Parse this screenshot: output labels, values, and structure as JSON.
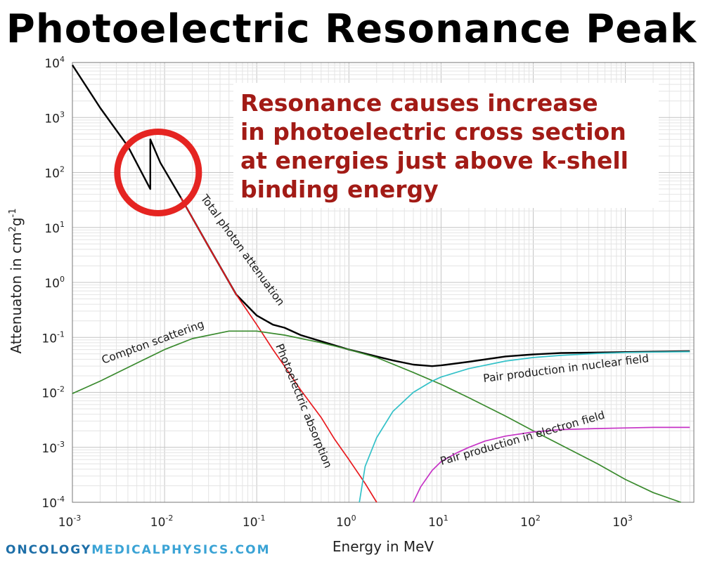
{
  "page": {
    "title": "Photoelectric Resonance Peak",
    "watermark": {
      "part1": "ONCOLOGY",
      "part2": "MEDICALPHYSICS.COM",
      "colors": {
        "part1": "#1e6fa8",
        "part2": "#3aa3d5"
      }
    }
  },
  "annotation": {
    "lines": [
      "Resonance causes increase",
      "in photoelectric cross section",
      "at energies just above k-shell",
      "binding energy"
    ],
    "color": "#a21b16",
    "highlight_circle": {
      "center_energy_MeV": 0.0085,
      "center_attenuation": 100,
      "color": "#e52421"
    }
  },
  "chart_data": {
    "type": "line",
    "xscale": "log",
    "yscale": "log",
    "xlim": [
      0.001,
      6000
    ],
    "ylim": [
      0.0001,
      10000
    ],
    "xlabel": "Energy in MeV",
    "ylabel": "Attenuaton in cm²g⁻¹",
    "ylabel_parts": {
      "pre": "Attenuaton in cm",
      "sup1": "2",
      "mid": "g",
      "sup2": "-1"
    },
    "xticks": [
      {
        "base": "10",
        "exp": "-3"
      },
      {
        "base": "10",
        "exp": "-2"
      },
      {
        "base": "10",
        "exp": "-1"
      },
      {
        "base": "10",
        "exp": "0"
      },
      {
        "base": "10",
        "exp": "1"
      },
      {
        "base": "10",
        "exp": "2"
      },
      {
        "base": "10",
        "exp": "3"
      }
    ],
    "yticks": [
      {
        "base": "10",
        "exp": "4"
      },
      {
        "base": "10",
        "exp": "3"
      },
      {
        "base": "10",
        "exp": "2"
      },
      {
        "base": "10",
        "exp": "1"
      },
      {
        "base": "10",
        "exp": "0"
      },
      {
        "base": "10",
        "exp": "-1"
      },
      {
        "base": "10",
        "exp": "-2"
      },
      {
        "base": "10",
        "exp": "-3"
      },
      {
        "base": "10",
        "exp": "-4"
      }
    ],
    "grid": true,
    "series": [
      {
        "key": "total",
        "name": "Total photon attenuation",
        "color": "#000000",
        "x": [
          0.001,
          0.002,
          0.004,
          0.007,
          0.007,
          0.009,
          0.015,
          0.03,
          0.06,
          0.1,
          0.15,
          0.2,
          0.3,
          0.5,
          1,
          2,
          3,
          5,
          8,
          10,
          20,
          50,
          100,
          200,
          500,
          1000,
          2000,
          5000
        ],
        "y": [
          9000,
          1500,
          300,
          50,
          400,
          150,
          35,
          4.5,
          0.6,
          0.25,
          0.17,
          0.15,
          0.11,
          0.085,
          0.06,
          0.045,
          0.038,
          0.032,
          0.03,
          0.031,
          0.036,
          0.045,
          0.049,
          0.052,
          0.053,
          0.054,
          0.055,
          0.056
        ]
      },
      {
        "key": "photoelectric",
        "name": "Photoelectric absorption",
        "color": "#e8191e",
        "x": [
          0.015,
          0.03,
          0.06,
          0.1,
          0.15,
          0.2,
          0.3,
          0.5,
          0.7,
          1,
          1.5,
          2
        ],
        "y": [
          35,
          4.5,
          0.6,
          0.17,
          0.06,
          0.03,
          0.011,
          0.0035,
          0.0014,
          0.0006,
          0.00022,
          0.0001
        ]
      },
      {
        "key": "compton",
        "name": "Compton scattering",
        "color": "#3a8a2e",
        "x": [
          0.001,
          0.002,
          0.005,
          0.01,
          0.02,
          0.05,
          0.1,
          0.2,
          0.5,
          1,
          2,
          5,
          10,
          20,
          50,
          100,
          200,
          500,
          1000,
          2000,
          4000
        ],
        "y": [
          0.0095,
          0.016,
          0.034,
          0.06,
          0.095,
          0.13,
          0.13,
          0.11,
          0.08,
          0.06,
          0.043,
          0.023,
          0.014,
          0.008,
          0.0037,
          0.002,
          0.0011,
          0.0005,
          0.00026,
          0.00015,
          0.0001
        ]
      },
      {
        "key": "nuclear",
        "name": "Pair production in nuclear field",
        "color": "#33c1c8",
        "x": [
          1.3,
          1.5,
          2,
          3,
          5,
          8,
          10,
          20,
          50,
          100,
          200,
          500,
          1000,
          2000,
          5000
        ],
        "y": [
          0.0001,
          0.00045,
          0.0015,
          0.0045,
          0.01,
          0.016,
          0.019,
          0.027,
          0.037,
          0.043,
          0.047,
          0.051,
          0.053,
          0.054,
          0.055
        ]
      },
      {
        "key": "electron",
        "name": "Pair production in electron field",
        "color": "#c633c6",
        "x": [
          5,
          6,
          8,
          10,
          15,
          20,
          30,
          50,
          100,
          200,
          500,
          1000,
          2000,
          5000
        ],
        "y": [
          0.0001,
          0.00019,
          0.00038,
          0.00055,
          0.0008,
          0.001,
          0.0013,
          0.0016,
          0.0019,
          0.0021,
          0.0022,
          0.00225,
          0.0023,
          0.0023
        ]
      }
    ],
    "curve_labels": [
      {
        "series": "total",
        "text": "Total photon attenuation"
      },
      {
        "series": "photoelectric",
        "text": "Photoelectric absorption"
      },
      {
        "series": "compton",
        "text": "Compton scattering"
      },
      {
        "series": "nuclear",
        "text": "Pair production in nuclear field"
      },
      {
        "series": "electron",
        "text": "Pair production in electron field"
      }
    ]
  }
}
